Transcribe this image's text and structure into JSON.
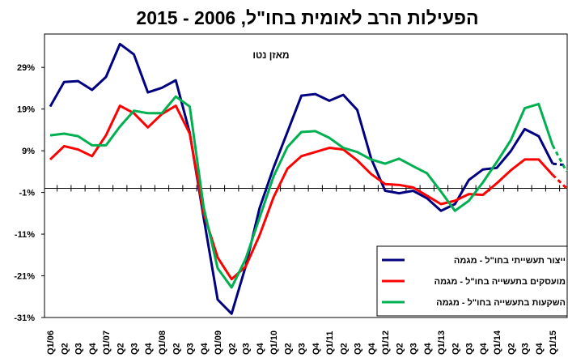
{
  "chart_data": {
    "type": "line",
    "title": "הפעילות הרב לאומית בחו\"ל, 2006 - 2015",
    "subtitle": "מאזן נטו",
    "categories": [
      "Q1/06",
      "Q2",
      "Q3",
      "Q4",
      "Q1/07",
      "Q2",
      "Q3",
      "Q4",
      "Q1/08",
      "Q2",
      "Q3",
      "Q4",
      "Q1/09",
      "Q2",
      "Q3",
      "Q4",
      "Q1/10",
      "Q2",
      "Q3",
      "Q4",
      "Q1/11",
      "Q2",
      "Q3",
      "Q4",
      "Q1/12",
      "Q2",
      "Q3",
      "Q4",
      "Q1/13",
      "Q2",
      "Q3",
      "Q4",
      "Q1/14",
      "Q2",
      "Q3",
      "Q4",
      "Q1/15",
      null
    ],
    "series": [
      {
        "name": "ייצור תעשייתי בחו\"ל - מגמה",
        "color": "#000080",
        "values": [
          19.6,
          25.5,
          25.7,
          23.6,
          26.7,
          34.6,
          32.1,
          23,
          24.1,
          25.9,
          13.3,
          -7.1,
          -26.7,
          -30.1,
          -18.8,
          -4.8,
          4.9,
          13.5,
          22.2,
          22.6,
          21,
          22.4,
          18.8,
          7.1,
          -0.6,
          -1.2,
          -0.6,
          -2.4,
          -5.4,
          -3.8,
          2,
          4.5,
          4.9,
          8.9,
          14.2,
          12.5,
          5.9,
          5.5
        ]
      },
      {
        "name": "מועסקים בתעשייה בחו\"ל - מגמה",
        "color": "#ff0000",
        "values": [
          6.9,
          10.1,
          9.3,
          7.7,
          12.7,
          19.8,
          18,
          14.6,
          17.8,
          19.8,
          13.1,
          -6,
          -16.6,
          -21.8,
          -18.8,
          -11.3,
          -2.2,
          4.7,
          7.7,
          8.7,
          9.7,
          9.3,
          6.7,
          3.4,
          1,
          0.8,
          0.2,
          -1.8,
          -3.8,
          -3,
          -1.4,
          -1.6,
          1.2,
          4.3,
          6.9,
          6.9,
          3.2,
          0
        ]
      },
      {
        "name": "השקעות בתעשייה בחו\"ל - מגמה",
        "color": "#00b050",
        "values": [
          12.7,
          13.1,
          12.5,
          10.3,
          10.3,
          14.8,
          18.6,
          18,
          18,
          22,
          19.6,
          -4.6,
          -19.2,
          -23.8,
          -17,
          -7.1,
          2.8,
          9.9,
          13.5,
          13.7,
          12.1,
          9.7,
          8.7,
          6.9,
          5.9,
          7.1,
          5.3,
          3.6,
          -0.8,
          -5.4,
          -3,
          1.4,
          6.3,
          11.5,
          19.2,
          20.2,
          10.3,
          4
        ]
      }
    ],
    "ylim": [
      -31,
      37
    ],
    "yticks": [
      {
        "value": -31,
        "label": "-31%"
      },
      {
        "value": -21,
        "label": "-21%"
      },
      {
        "value": -11,
        "label": "-11%"
      },
      {
        "value": -1,
        "label": "-1%"
      },
      {
        "value": 9,
        "label": "9%"
      },
      {
        "value": 19,
        "label": "19%"
      },
      {
        "value": 29,
        "label": "29%"
      }
    ],
    "grid": false,
    "legend": "bottom-right"
  }
}
